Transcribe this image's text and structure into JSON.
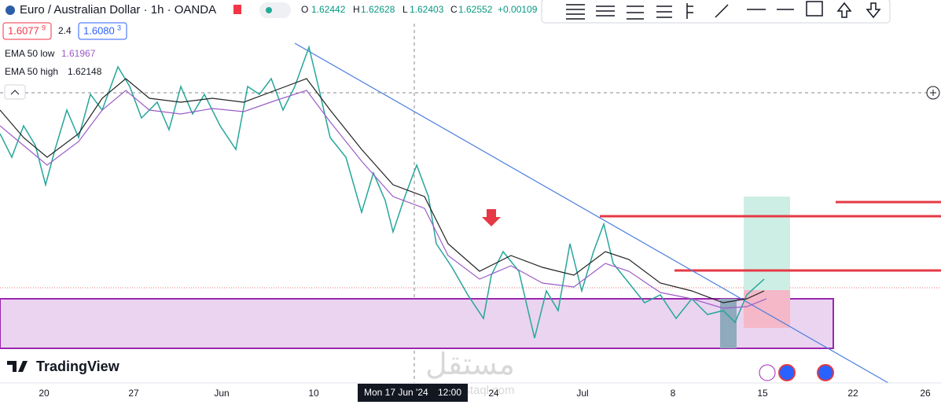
{
  "header": {
    "symbol": "Euro / Australian Dollar · 1h · OANDA",
    "ohlc": {
      "o_label": "O",
      "o": "1.62442",
      "h_label": "H",
      "h": "1.62628",
      "l_label": "L",
      "l": "1.62403",
      "c_label": "C",
      "c": "1.62552",
      "change": "+0.00109"
    }
  },
  "quote": {
    "bid": "1.6077",
    "bid_sup": "9",
    "spread": "2.4",
    "ask": "1.6080",
    "ask_sup": "3"
  },
  "indicators": [
    {
      "name": "EMA 50 low",
      "value": "1.61967"
    },
    {
      "name": "EMA 50 high",
      "value": "1.62148"
    }
  ],
  "x_axis": {
    "labels": [
      "20",
      "27",
      "Jun",
      "10",
      "24",
      "Jul",
      "8",
      "15",
      "22",
      "26"
    ],
    "crosshair": "Mon 17 Jun '24",
    "crosshair_time": "12:00"
  },
  "brand": "TradingView",
  "watermark": {
    "arabic": "مستقل",
    "latin": "mostaql.com"
  }
}
